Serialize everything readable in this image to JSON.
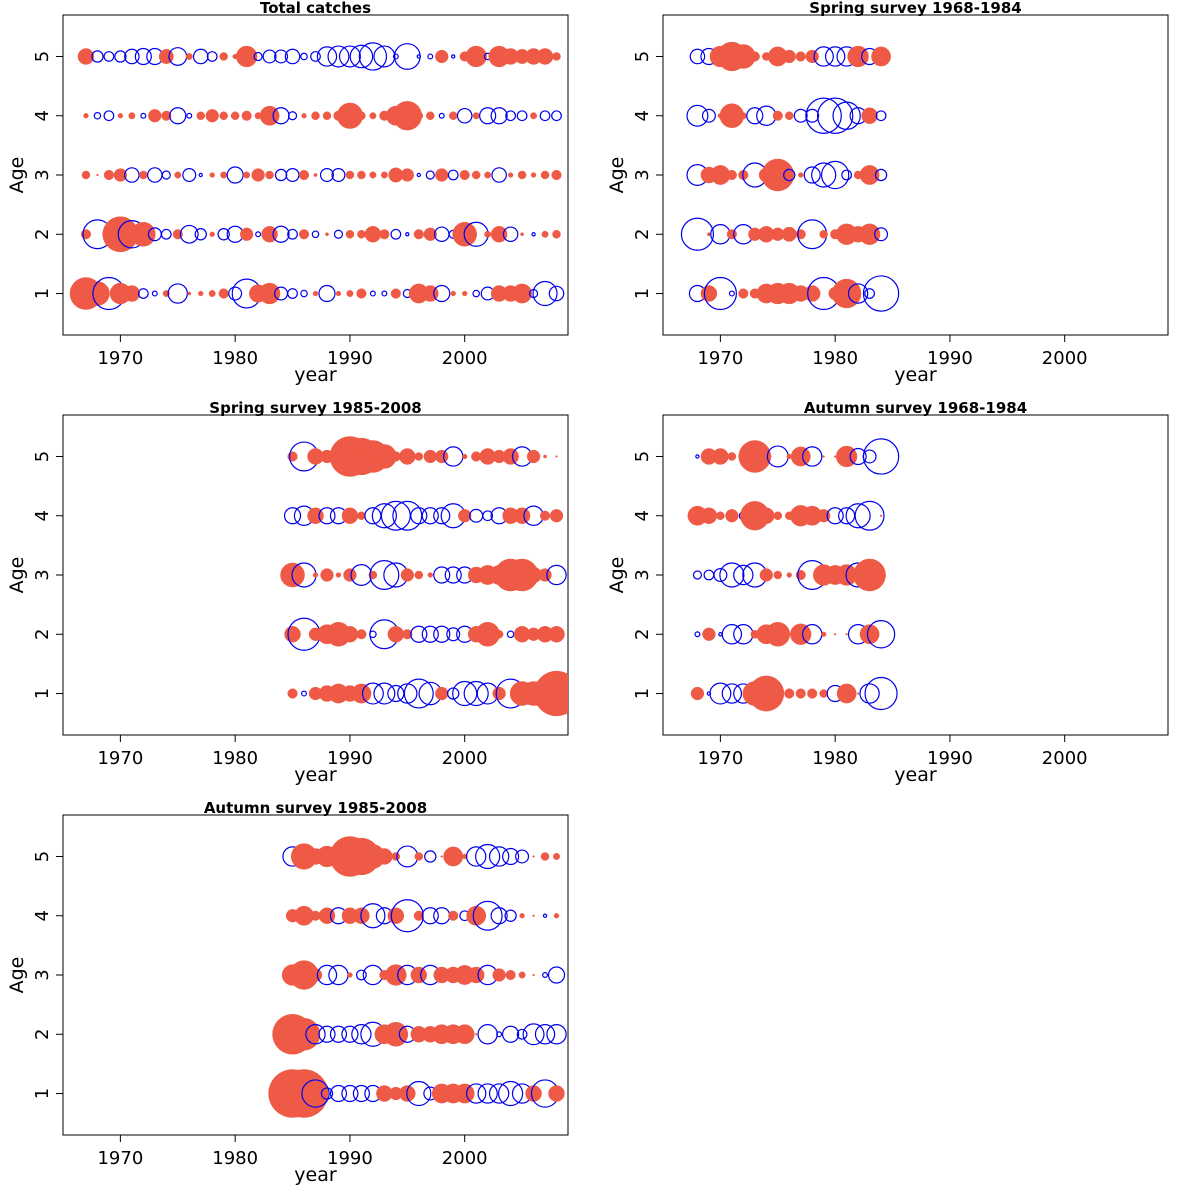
{
  "colors": {
    "positive": "#ee5a45",
    "negative": "#0000ee",
    "axes": "#000000"
  },
  "chart_data": [
    {
      "type": "scatter",
      "title": "Total catches",
      "xlabel": "year",
      "ylabel": "Age",
      "xlim": [
        1965,
        2009
      ],
      "ylim": [
        0.3,
        5.7
      ],
      "xticks": [
        "1970",
        "1980",
        "1990",
        "2000"
      ],
      "yticks": [
        "1",
        "2",
        "3",
        "4",
        "5"
      ],
      "years": [
        1967,
        1968,
        1969,
        1970,
        1971,
        1972,
        1973,
        1974,
        1975,
        1976,
        1977,
        1978,
        1979,
        1980,
        1981,
        1982,
        1983,
        1984,
        1985,
        1986,
        1987,
        1988,
        1989,
        1990,
        1991,
        1992,
        1993,
        1994,
        1995,
        1996,
        1997,
        1998,
        1999,
        2000,
        2001,
        2002,
        2003,
        2004,
        2005,
        2006,
        2007,
        2008
      ],
      "ages": [
        {
          "age": 1,
          "residuals": [
            2.0,
            1.5,
            -2.0,
            1.3,
            1.0,
            -0.6,
            -0.3,
            0.4,
            -1.2,
            0.2,
            0.3,
            0.4,
            0.6,
            -0.8,
            -1.8,
            1.1,
            1.3,
            -0.8,
            -0.6,
            -0.4,
            0.3,
            -1.0,
            0.3,
            0.4,
            0.6,
            -0.3,
            -0.3,
            0.6,
            -0.5,
            1.2,
            1.0,
            -1.0,
            0.3,
            0.3,
            -0.4,
            -0.8,
            1.0,
            1.0,
            1.2,
            -0.5,
            -1.5,
            -0.9
          ]
        },
        {
          "age": 2,
          "residuals": [
            0.6,
            -1.8,
            0.8,
            2.2,
            -1.7,
            1.5,
            -0.8,
            -0.6,
            0.6,
            -1.1,
            -0.7,
            0.3,
            -0.7,
            -1.0,
            0.8,
            -0.3,
            1.0,
            -1.0,
            -0.6,
            0.6,
            -0.4,
            0.2,
            -0.5,
            0.5,
            0.5,
            1.0,
            0.6,
            -0.6,
            -0.2,
            0.6,
            0.8,
            -0.9,
            -0.5,
            1.5,
            -1.5,
            0.4,
            1.0,
            -0.9,
            0.2,
            -0.2,
            0.4,
            0.5
          ]
        },
        {
          "age": 3,
          "residuals": [
            0.5,
            0.1,
            0.6,
            0.8,
            -0.9,
            0.5,
            -0.9,
            -0.5,
            0.4,
            -0.8,
            -0.2,
            0.3,
            0.4,
            -1.0,
            0.4,
            0.8,
            0.5,
            -0.7,
            -0.8,
            0.6,
            0.2,
            -0.8,
            -0.8,
            0.5,
            0.5,
            0.4,
            0.4,
            0.9,
            0.8,
            -0.2,
            -0.5,
            0.8,
            -0.6,
            0.6,
            0.5,
            0.4,
            -0.9,
            0.3,
            0.5,
            0.3,
            0.5,
            0.6
          ]
        },
        {
          "age": 4,
          "residuals": [
            0.3,
            -0.4,
            -0.6,
            0.3,
            0.4,
            -0.3,
            0.8,
            0.6,
            -1.0,
            -0.3,
            0.5,
            0.8,
            0.5,
            0.5,
            0.6,
            0.4,
            1.2,
            -1.0,
            -0.5,
            0.3,
            0.5,
            0.5,
            0.6,
            1.6,
            0.5,
            0.4,
            0.6,
            1.2,
            1.8,
            0.5,
            0.5,
            -0.3,
            0.5,
            -0.9,
            0.4,
            -1.0,
            -1.0,
            -0.6,
            -0.6,
            0.4,
            -0.6,
            -0.6
          ]
        },
        {
          "age": 5,
          "residuals": [
            1.0,
            -0.7,
            -0.6,
            -0.7,
            -0.9,
            -1.0,
            -1.0,
            0.9,
            -1.1,
            0.4,
            -0.9,
            -0.6,
            0.5,
            0.3,
            1.3,
            -0.5,
            -0.8,
            -0.8,
            -0.9,
            -0.4,
            -0.6,
            -1.2,
            -1.3,
            -1.3,
            -1.4,
            -1.7,
            -1.3,
            -0.3,
            -1.6,
            -0.2,
            -0.3,
            0.8,
            -0.2,
            0.6,
            1.3,
            -0.4,
            1.3,
            1.0,
            0.9,
            1.0,
            1.0,
            0.5
          ]
        }
      ]
    },
    {
      "type": "scatter",
      "title": "Spring survey 1968-1984",
      "xlabel": "year",
      "ylabel": "Age",
      "xlim": [
        1965,
        2009
      ],
      "ylim": [
        0.3,
        5.7
      ],
      "xticks": [
        "1970",
        "1980",
        "1990",
        "2000"
      ],
      "yticks": [
        "1",
        "2",
        "3",
        "4",
        "5"
      ],
      "years": [
        1968,
        1969,
        1970,
        1971,
        1972,
        1973,
        1974,
        1975,
        1976,
        1977,
        1978,
        1979,
        1980,
        1981,
        1982,
        1983,
        1984
      ],
      "ages": [
        {
          "age": 1,
          "residuals": [
            -1.0,
            1.0,
            -2.0,
            -0.3,
            0.6,
            0.6,
            1.2,
            1.3,
            1.3,
            1.0,
            1.0,
            -2.0,
            0.8,
            1.8,
            -1.2,
            -0.6,
            -2.2
          ]
        },
        {
          "age": 2,
          "residuals": [
            -2.0,
            0.2,
            -1.2,
            0.6,
            -1.2,
            0.8,
            1.0,
            0.8,
            0.9,
            0.6,
            -1.8,
            0.5,
            0.6,
            1.3,
            1.0,
            1.3,
            -0.8
          ]
        },
        {
          "age": 3,
          "residuals": [
            -1.3,
            1.0,
            1.2,
            0.6,
            0.6,
            -1.5,
            0.9,
            2.0,
            -0.7,
            0.3,
            -1.0,
            -1.5,
            -1.7,
            -0.6,
            0.5,
            1.2,
            -0.7
          ]
        },
        {
          "age": 4,
          "residuals": [
            -1.3,
            -0.8,
            0.3,
            1.5,
            0.4,
            -1.0,
            -1.2,
            0.6,
            0.5,
            -0.8,
            -0.8,
            -2.2,
            -2.2,
            -1.7,
            -1.0,
            1.0,
            -0.6
          ]
        },
        {
          "age": 5,
          "residuals": [
            -0.9,
            -1.0,
            1.3,
            1.8,
            1.5,
            0.6,
            0.5,
            1.2,
            0.8,
            0.6,
            0.8,
            -1.2,
            -1.2,
            -1.2,
            1.3,
            -1.0,
            1.2
          ]
        }
      ]
    },
    {
      "type": "scatter",
      "title": "Spring survey 1985-2008",
      "xlabel": "year",
      "ylabel": "Age",
      "xlim": [
        1965,
        2009
      ],
      "ylim": [
        0.3,
        5.7
      ],
      "xticks": [
        "1970",
        "1980",
        "1990",
        "2000"
      ],
      "yticks": [
        "1",
        "2",
        "3",
        "4",
        "5"
      ],
      "years": [
        1985,
        1986,
        1987,
        1988,
        1989,
        1990,
        1991,
        1992,
        1993,
        1994,
        1995,
        1996,
        1997,
        1998,
        1999,
        2000,
        2001,
        2002,
        2003,
        2004,
        2005,
        2006,
        2007,
        2008
      ],
      "ages": [
        {
          "age": 1,
          "residuals": [
            0.6,
            -0.3,
            0.8,
            1.0,
            1.2,
            1.0,
            1.2,
            -1.3,
            -1.3,
            -1.0,
            -1.2,
            -1.8,
            -1.4,
            0.8,
            -0.7,
            -1.5,
            -1.5,
            -1.3,
            0.8,
            -1.8,
            1.5,
            1.5,
            1.8,
            2.8
          ]
        },
        {
          "age": 2,
          "residuals": [
            1.0,
            -2.0,
            0.8,
            1.2,
            1.5,
            1.0,
            0.6,
            -0.4,
            -1.8,
            1.0,
            0.6,
            -1.0,
            -1.0,
            -1.0,
            -0.8,
            -1.0,
            1.0,
            1.5,
            0.5,
            -0.4,
            1.0,
            0.8,
            1.0,
            1.0
          ]
        },
        {
          "age": 3,
          "residuals": [
            1.5,
            -1.5,
            0.3,
            0.8,
            0.3,
            0.8,
            -1.3,
            0.5,
            -1.8,
            -1.5,
            0.8,
            0.5,
            0.3,
            -1.0,
            -1.0,
            -1.0,
            1.0,
            1.2,
            1.2,
            2.0,
            2.0,
            1.0,
            0.8,
            -1.2
          ]
        },
        {
          "age": 4,
          "residuals": [
            -1.0,
            -1.2,
            1.0,
            -1.0,
            -1.0,
            1.0,
            0.5,
            -1.0,
            -1.5,
            -1.8,
            -1.8,
            -1.0,
            -1.0,
            -1.0,
            -1.5,
            0.8,
            -0.8,
            -0.6,
            -1.0,
            1.0,
            1.0,
            -1.2,
            0.6,
            0.8
          ]
        },
        {
          "age": 5,
          "residuals": [
            0.6,
            -1.8,
            1.0,
            0.8,
            0.5,
            2.5,
            2.3,
            2.0,
            1.5,
            0.6,
            1.0,
            0.5,
            0.8,
            0.8,
            -1.2,
            0.3,
            0.6,
            1.0,
            0.8,
            1.0,
            -1.2,
            0.8,
            0.2,
            0.1
          ]
        }
      ]
    },
    {
      "type": "scatter",
      "title": "Autumn survey 1968-1984",
      "xlabel": "year",
      "ylabel": "Age",
      "xlim": [
        1965,
        2009
      ],
      "ylim": [
        0.3,
        5.7
      ],
      "xticks": [
        "1970",
        "1980",
        "1990",
        "2000"
      ],
      "yticks": [
        "1",
        "2",
        "3",
        "4",
        "5"
      ],
      "years": [
        1968,
        1969,
        1970,
        1971,
        1972,
        1973,
        1974,
        1975,
        1976,
        1977,
        1978,
        1979,
        1980,
        1981,
        1982,
        1983,
        1984
      ],
      "ages": [
        {
          "age": 1,
          "residuals": [
            0.8,
            -0.2,
            -1.3,
            -1.2,
            -1.2,
            1.5,
            2.2,
            0.0,
            0.6,
            0.6,
            0.6,
            0.5,
            -1.0,
            1.2,
            0.0,
            -1.2,
            -2.0
          ]
        },
        {
          "age": 2,
          "residuals": [
            -0.3,
            0.8,
            -0.2,
            -1.2,
            -1.2,
            0.5,
            1.2,
            1.5,
            0.0,
            1.3,
            -1.2,
            0.3,
            0.0,
            0.0,
            -1.2,
            1.2,
            -1.7
          ]
        },
        {
          "age": 3,
          "residuals": [
            -0.5,
            -0.6,
            -0.8,
            -1.5,
            -1.2,
            -1.5,
            0.8,
            0.5,
            0.3,
            0.6,
            -1.8,
            1.3,
            1.2,
            1.3,
            -1.5,
            2.0,
            0.0
          ]
        },
        {
          "age": 4,
          "residuals": [
            1.2,
            1.0,
            0.5,
            0.8,
            -0.5,
            1.8,
            1.0,
            0.5,
            0.5,
            1.3,
            1.2,
            0.8,
            -1.0,
            -1.0,
            -1.5,
            -1.8,
            0.0
          ]
        },
        {
          "age": 5,
          "residuals": [
            -0.2,
            1.0,
            1.0,
            0.5,
            0.6,
            2.0,
            0.6,
            -1.3,
            0.3,
            1.2,
            -1.2,
            0.0,
            0.0,
            1.3,
            -1.0,
            -0.8,
            -2.2
          ]
        }
      ]
    },
    {
      "type": "scatter",
      "title": "Autumn survey 1985-2008",
      "xlabel": "year",
      "ylabel": "Age",
      "xlim": [
        1965,
        2009
      ],
      "ylim": [
        0.3,
        5.7
      ],
      "xticks": [
        "1970",
        "1980",
        "1990",
        "2000"
      ],
      "yticks": [
        "1",
        "2",
        "3",
        "4",
        "5"
      ],
      "years": [
        1985,
        1986,
        1987,
        1988,
        1989,
        1990,
        1991,
        1992,
        1993,
        1994,
        1995,
        1996,
        1997,
        1998,
        1999,
        2000,
        2001,
        2002,
        2003,
        2004,
        2005,
        2006,
        2007,
        2008
      ],
      "ages": [
        {
          "age": 1,
          "residuals": [
            3.0,
            3.0,
            -1.7,
            -0.7,
            -1.0,
            -1.0,
            -1.0,
            -1.0,
            1.0,
            0.8,
            1.0,
            -1.5,
            -0.8,
            1.2,
            1.2,
            1.2,
            -1.2,
            -1.2,
            -1.2,
            -1.5,
            -1.2,
            1.0,
            -1.7,
            1.0
          ]
        },
        {
          "age": 2,
          "residuals": [
            2.5,
            2.0,
            -1.2,
            -1.0,
            -1.0,
            -1.0,
            -1.2,
            -1.5,
            1.2,
            1.5,
            -1.0,
            1.0,
            1.0,
            1.2,
            1.2,
            1.2,
            0.0,
            -1.2,
            -0.3,
            -1.0,
            -0.6,
            -1.3,
            -1.2,
            -1.2
          ]
        },
        {
          "age": 3,
          "residuals": [
            1.3,
            1.8,
            0.8,
            -1.2,
            -1.2,
            0.3,
            -0.6,
            -1.2,
            0.6,
            1.3,
            -1.2,
            1.0,
            -1.2,
            1.0,
            1.0,
            1.2,
            1.0,
            -1.2,
            0.8,
            0.6,
            0.4,
            0.0,
            -0.3,
            -1.0
          ]
        },
        {
          "age": 4,
          "residuals": [
            0.8,
            1.2,
            0.6,
            1.0,
            -1.0,
            1.0,
            1.0,
            -1.5,
            -1.0,
            1.0,
            -2.0,
            0.6,
            -1.0,
            -1.0,
            0.6,
            -0.6,
            1.2,
            -1.8,
            -1.0,
            -0.7,
            0.3,
            0.0,
            -0.2,
            0.3
          ]
        },
        {
          "age": 5,
          "residuals": [
            -1.2,
            1.6,
            1.0,
            1.3,
            -1.0,
            2.5,
            2.3,
            1.5,
            1.0,
            0.5,
            -1.3,
            0.5,
            -0.7,
            0.0,
            1.2,
            0.3,
            -1.2,
            -1.5,
            -1.2,
            -1.0,
            -0.8,
            0.0,
            0.5,
            0.4
          ]
        }
      ]
    }
  ]
}
